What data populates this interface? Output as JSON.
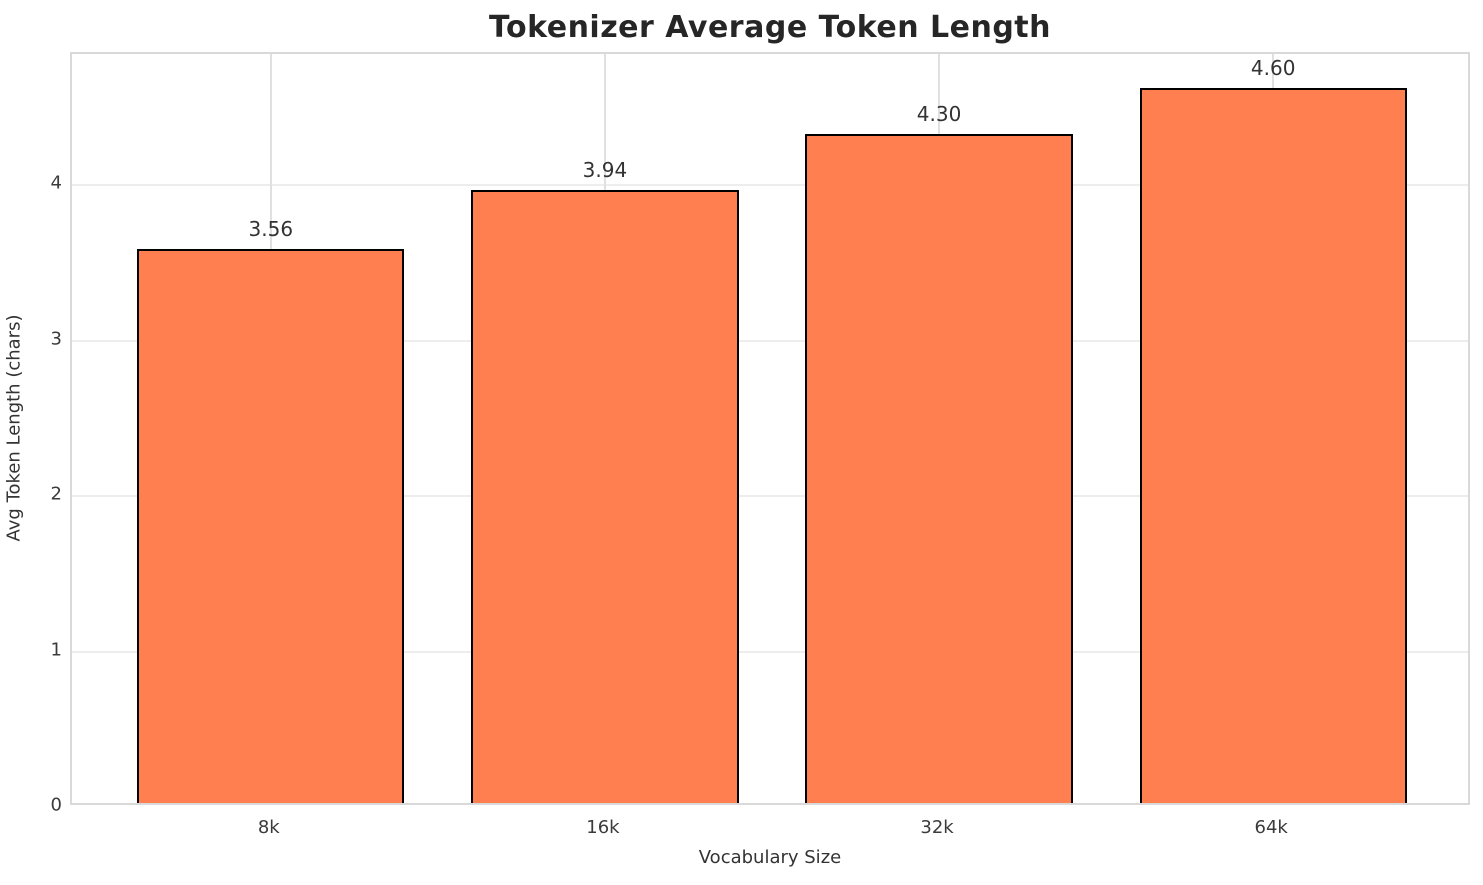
{
  "chart_data": {
    "type": "bar",
    "title": "Tokenizer Average Token Length",
    "xlabel": "Vocabulary Size",
    "ylabel": "Avg Token Length (chars)",
    "categories": [
      "8k",
      "16k",
      "32k",
      "64k"
    ],
    "values": [
      3.56,
      3.94,
      4.3,
      4.6
    ],
    "value_labels": [
      "3.56",
      "3.94",
      "4.30",
      "4.60"
    ],
    "yticks": [
      0,
      1,
      2,
      3,
      4
    ],
    "ytick_labels": [
      "0",
      "1",
      "2",
      "3",
      "4"
    ],
    "ylim": [
      0,
      4.843
    ],
    "grid": "on",
    "legend": "none",
    "colors": {
      "bar_fill": "#FF7F50",
      "bar_edge": "#000000",
      "grid_horizontal": "#ededed",
      "grid_vertical": "#e0e0e0",
      "spine": "#d9d9d9",
      "title_text": "#262626",
      "tick_text": "#3b3b3b",
      "label_text": "#333333"
    }
  }
}
